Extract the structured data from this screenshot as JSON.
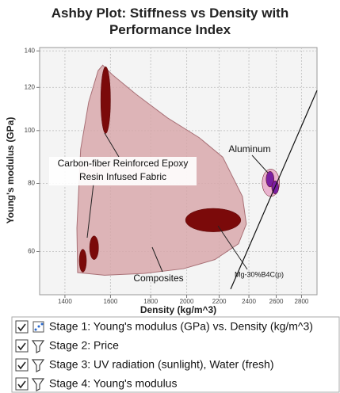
{
  "chart_data": {
    "type": "ashby",
    "title": "Ashby Plot: Stiffness vs Density with Performance Index",
    "x_label": "Density (kg/m^3)",
    "y_label": "Young's modulus (GPa)",
    "log_x": true,
    "log_y": true,
    "grid": true,
    "xlim": [
      1300,
      2930
    ],
    "ylim": [
      50,
      142
    ],
    "xticks": [
      1400,
      1600,
      1800,
      2000,
      2200,
      2400,
      2600,
      2800
    ],
    "yticks": [
      60,
      80,
      100,
      120,
      140
    ],
    "envelope": {
      "color": "#d8a8ac",
      "x": [
        1453,
        1450,
        1466,
        1501,
        1543,
        1564,
        1608,
        1724,
        1891,
        2074,
        2223,
        2355,
        2382,
        2328,
        2172,
        1981,
        1764,
        1572
      ],
      "y": [
        54.9,
        66.3,
        92.4,
        112.8,
        128.8,
        131.8,
        126.7,
        116.6,
        105.5,
        97.1,
        89.4,
        75.7,
        67.4,
        62.0,
        58.0,
        55.8,
        54.7,
        54.3
      ]
    },
    "ellipses": [
      {
        "color": "#7b0a0a",
        "x": [
          1555,
          1600
        ],
        "y": [
          98.8,
          131
        ]
      },
      {
        "color": "#7b0a0a",
        "x": [
          1505,
          1545
        ],
        "y": [
          58,
          64.1
        ]
      },
      {
        "color": "#7b0a0a",
        "x": [
          1460,
          1491
        ],
        "y": [
          55,
          60.6
        ]
      },
      {
        "color": "#7b0a0a",
        "x": [
          1993,
          2344
        ],
        "y": [
          65.2,
          72
        ]
      },
      {
        "color": "#e9b3cf",
        "x": [
          2495,
          2625
        ],
        "y": [
          75.7,
          85
        ]
      },
      {
        "color": "#7a1fa0",
        "x": [
          2524,
          2583
        ],
        "y": [
          78.8,
          84.2
        ]
      },
      {
        "color": "#7a1fa0",
        "x": [
          2566,
          2619
        ],
        "y": [
          76.5,
          80.9
        ]
      }
    ],
    "index_line": {
      "color": "#111111",
      "x": [
        2275,
        2930
      ],
      "y": [
        51.2,
        118.5
      ]
    },
    "annotations": [
      "Carbon-fiber Reinforced Epoxy",
      "Resin Infused Fabric",
      "Aluminum",
      "Composites",
      "Mg-30%B4C(p)"
    ]
  },
  "stages": [
    "Stage 1: Young's modulus (GPa) vs. Density (kg/m^3)",
    "Stage 2: Price",
    "Stage 3: UV radiation (sunlight), Water (fresh)",
    "Stage 4: Young's modulus"
  ]
}
